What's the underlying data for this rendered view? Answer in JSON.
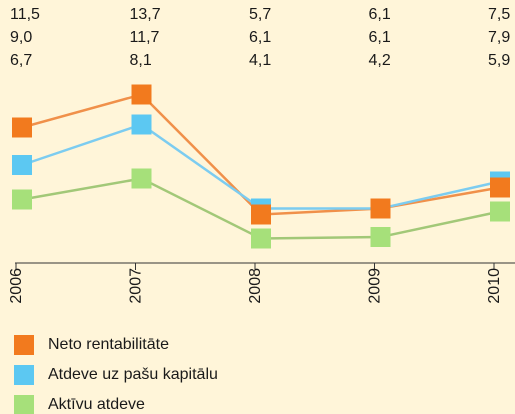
{
  "chart_data": {
    "type": "line",
    "categories": [
      "2006",
      "2007",
      "2008",
      "2009",
      "2010"
    ],
    "series": [
      {
        "name": "Neto rentabilitāte",
        "color": "#f27a1e",
        "line_color": "#f0904a",
        "values": [
          11.5,
          13.7,
          5.7,
          6.1,
          7.5
        ],
        "value_labels": [
          "11,5",
          "13,7",
          "5,7",
          "6,1",
          "7,5"
        ]
      },
      {
        "name": "Atdeve uz pašu kapitālu",
        "color": "#5cc8f2",
        "line_color": "#7cccf0",
        "values": [
          9.0,
          11.7,
          6.1,
          6.1,
          7.9
        ],
        "value_labels": [
          "9,0",
          "11,7",
          "6,1",
          "6,1",
          "7,9"
        ]
      },
      {
        "name": "Aktīvu atdeve",
        "color": "#a6e07a",
        "line_color": "#a2c878",
        "values": [
          6.7,
          8.1,
          4.1,
          4.2,
          5.9
        ],
        "value_labels": [
          "6,7",
          "8,1",
          "4,1",
          "4,2",
          "5,9"
        ]
      }
    ],
    "ylim": [
      2.5,
      16
    ]
  }
}
